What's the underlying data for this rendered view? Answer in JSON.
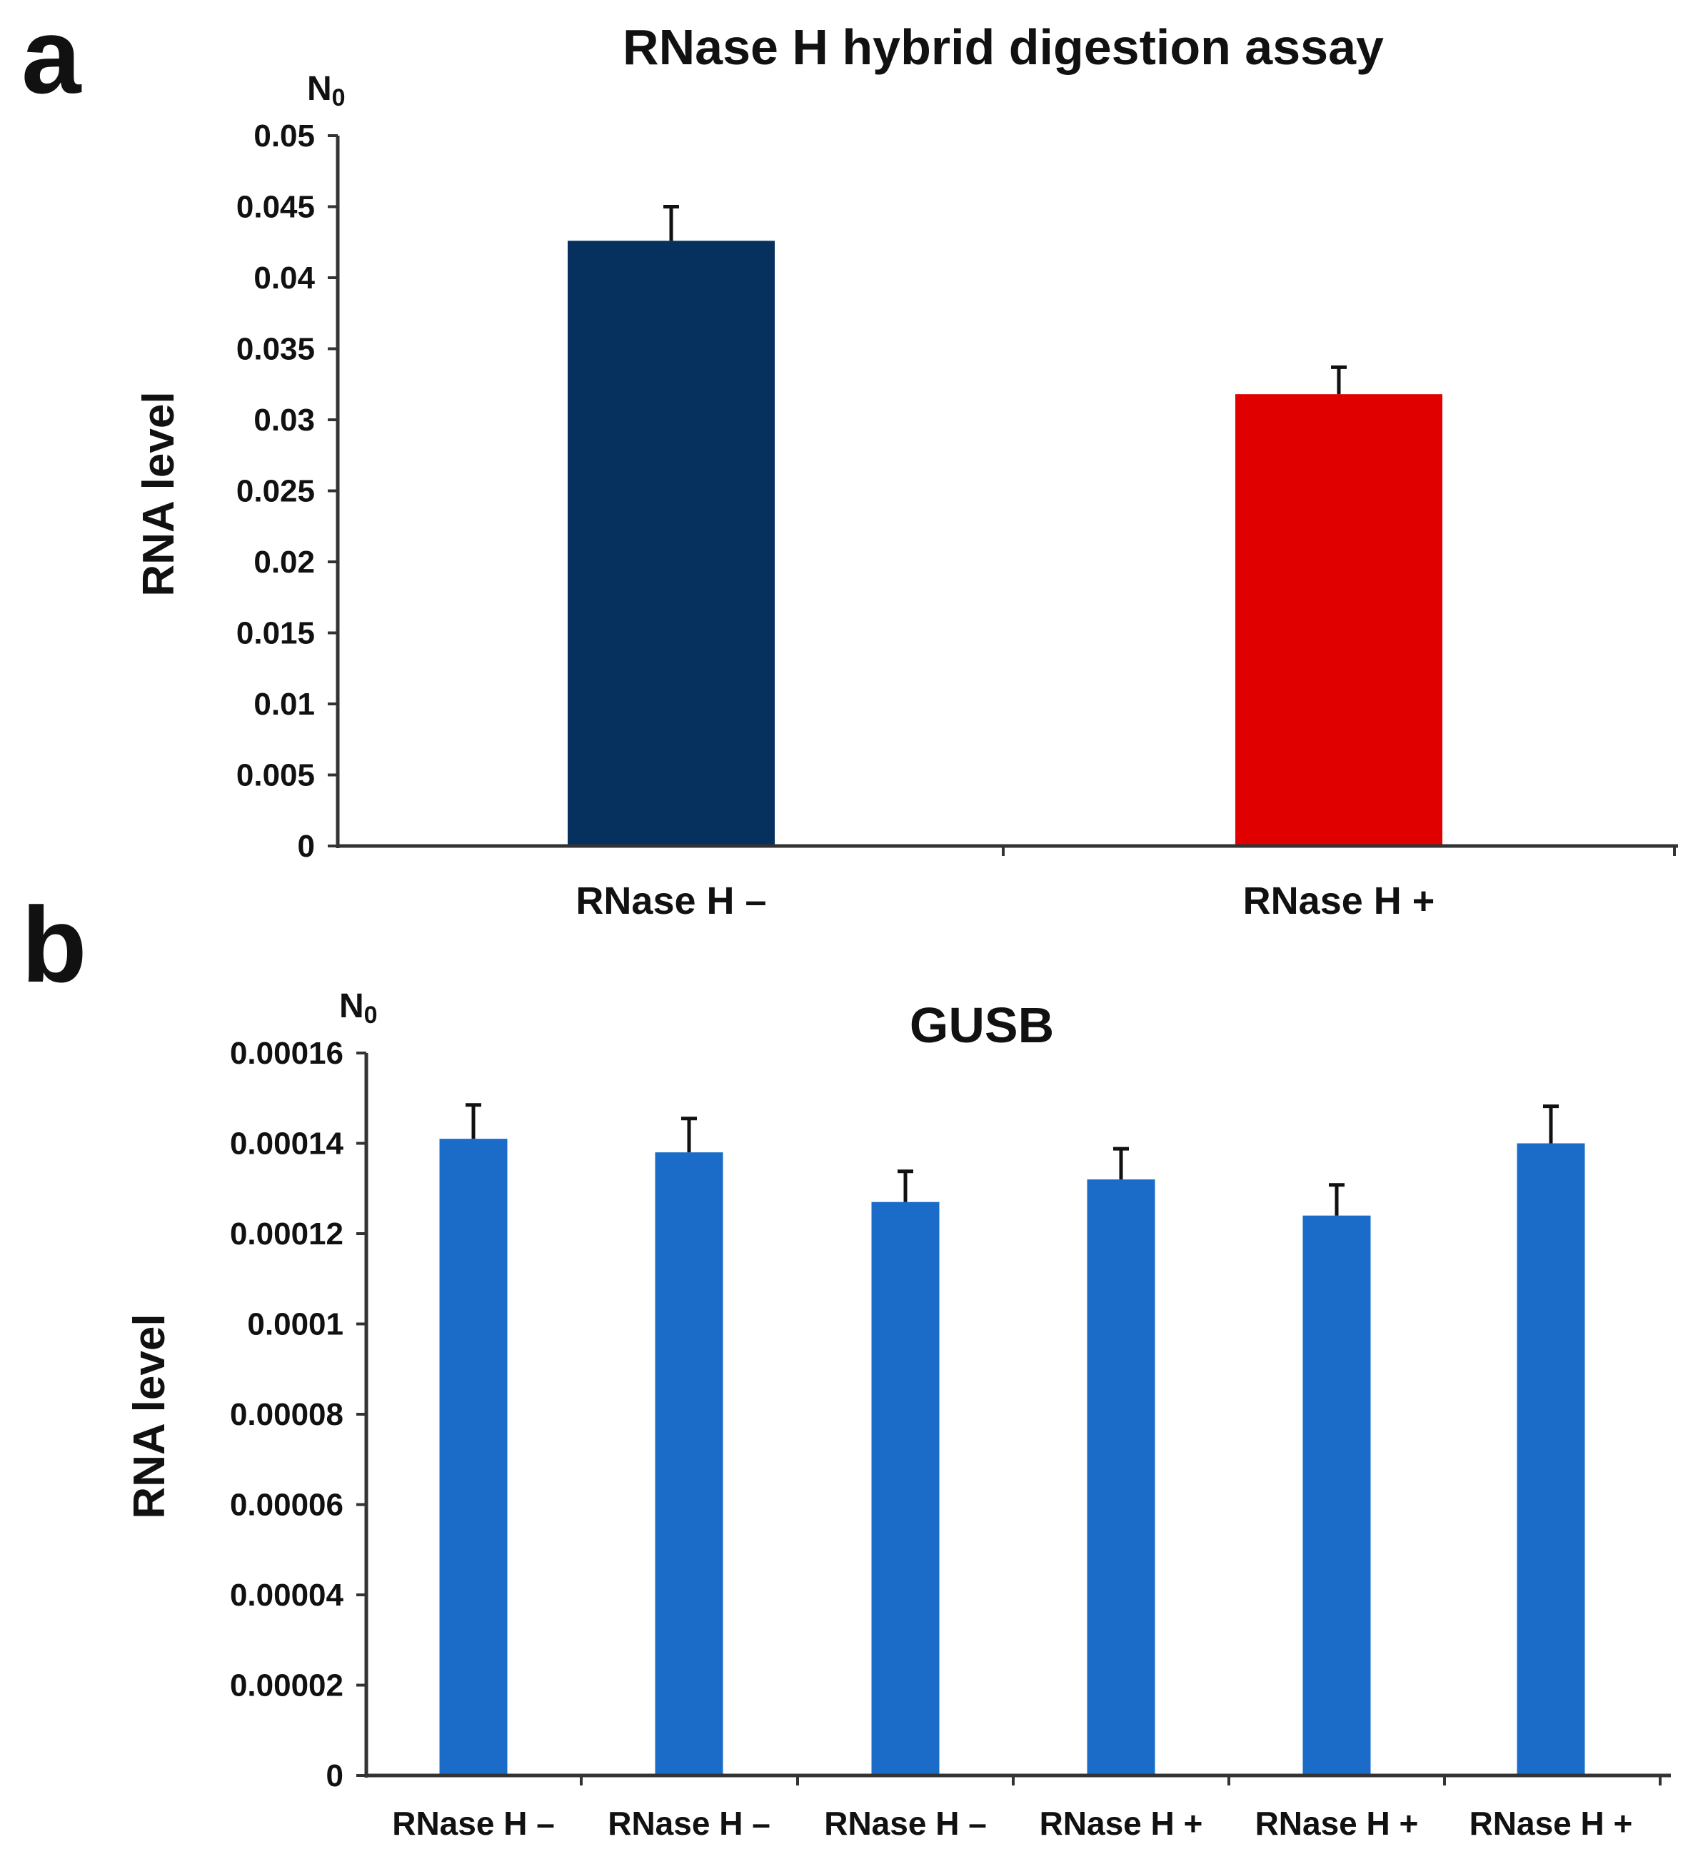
{
  "panels": {
    "a": {
      "letter": "a",
      "unit": "N0"
    },
    "b": {
      "letter": "b",
      "unit": "N0"
    }
  },
  "chart_data": [
    {
      "type": "bar",
      "title": "RNase H hybrid digestion assay",
      "xlabel": "",
      "ylabel": "RNA level",
      "ylim": [
        0,
        0.05
      ],
      "yticks": [
        "0",
        "0.005",
        "0.01",
        "0.015",
        "0.02",
        "0.025",
        "0.03",
        "0.035",
        "0.04",
        "0.045",
        "0.05"
      ],
      "categories": [
        "RNase H –",
        "RNase H +"
      ],
      "values": [
        0.0426,
        0.0318
      ],
      "errors": [
        0.0024,
        0.0019
      ],
      "colors": [
        "#06315f",
        "#e00000"
      ],
      "grid": false
    },
    {
      "type": "bar",
      "title": "GUSB",
      "xlabel": "",
      "ylabel": "RNA level",
      "ylim": [
        0,
        0.00016
      ],
      "yticks": [
        "0",
        "0.00002",
        "0.00004",
        "0.00006",
        "0.00008",
        "0.0001",
        "0.00012",
        "0.00014",
        "0.00016"
      ],
      "categories": [
        "RNase H –",
        "RNase H –",
        "RNase H –",
        "RNase H +",
        "RNase H +",
        "RNase H +"
      ],
      "values": [
        0.000141,
        0.000138,
        0.000127,
        0.000132,
        0.000124,
        0.00014
      ],
      "errors": [
        7.5e-06,
        7.5e-06,
        6.8e-06,
        6.8e-06,
        6.8e-06,
        8.2e-06
      ],
      "colors": [
        "#1a6cc8"
      ],
      "grid": false
    }
  ]
}
